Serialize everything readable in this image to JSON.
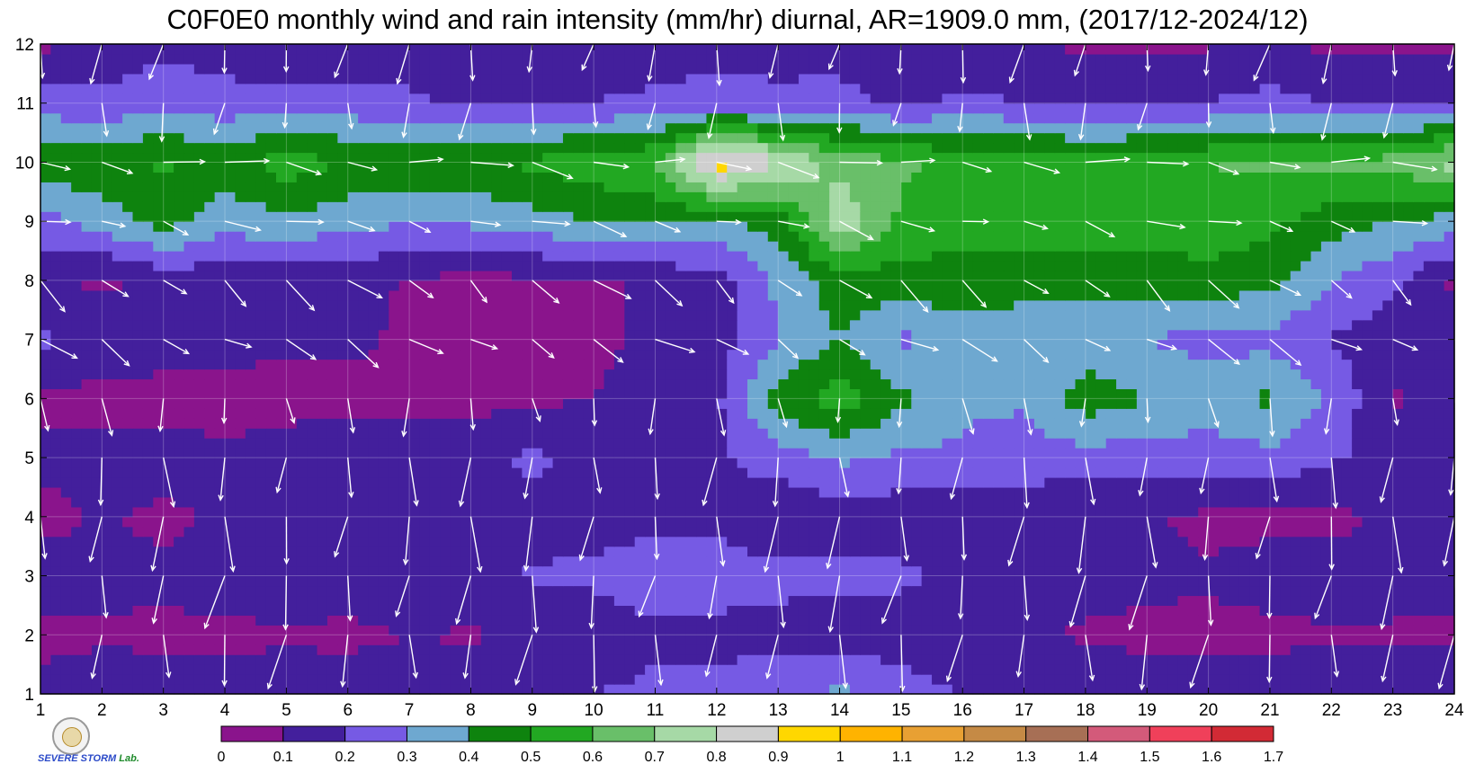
{
  "chart_data": {
    "type": "heatmap",
    "title": "C0F0E0 monthly wind and rain intensity (mm/hr) diurnal, AR=1909.0 mm, (2017/12-2024/12)",
    "xlabel": "",
    "ylabel": "",
    "x": [
      1,
      2,
      3,
      4,
      5,
      6,
      7,
      8,
      9,
      10,
      11,
      12,
      13,
      14,
      15,
      16,
      17,
      18,
      19,
      20,
      21,
      22,
      23,
      24
    ],
    "y": [
      1,
      2,
      3,
      4,
      5,
      6,
      7,
      8,
      9,
      10,
      11,
      12
    ],
    "xlim": [
      1,
      24
    ],
    "ylim": [
      1,
      12
    ],
    "x_tick_labels": [
      "1",
      "2",
      "3",
      "4",
      "5",
      "6",
      "7",
      "8",
      "9",
      "10",
      "11",
      "12",
      "13",
      "14",
      "15",
      "16",
      "17",
      "18",
      "19",
      "20",
      "21",
      "22",
      "23",
      "24"
    ],
    "y_tick_labels": [
      "1",
      "2",
      "3",
      "4",
      "5",
      "6",
      "7",
      "8",
      "9",
      "10",
      "11",
      "12"
    ],
    "z_rows_bottom_to_top": [
      [
        0.12,
        0.14,
        0.15,
        0.13,
        0.14,
        0.15,
        0.15,
        0.17,
        0.2,
        0.2,
        0.22,
        0.24,
        0.26,
        0.32,
        0.25,
        0.2,
        0.17,
        0.15,
        0.15,
        0.16,
        0.15,
        0.15,
        0.14,
        0.13
      ],
      [
        0.08,
        0.09,
        0.08,
        0.08,
        0.09,
        0.08,
        0.1,
        0.09,
        0.11,
        0.14,
        0.18,
        0.17,
        0.16,
        0.16,
        0.14,
        0.12,
        0.11,
        0.09,
        0.08,
        0.08,
        0.08,
        0.09,
        0.09,
        0.09
      ],
      [
        0.14,
        0.12,
        0.12,
        0.14,
        0.15,
        0.15,
        0.16,
        0.18,
        0.21,
        0.22,
        0.26,
        0.25,
        0.23,
        0.22,
        0.22,
        0.18,
        0.15,
        0.13,
        0.12,
        0.11,
        0.13,
        0.14,
        0.13,
        0.12
      ],
      [
        0.07,
        0.11,
        0.08,
        0.12,
        0.14,
        0.14,
        0.14,
        0.16,
        0.16,
        0.16,
        0.17,
        0.17,
        0.12,
        0.14,
        0.14,
        0.13,
        0.12,
        0.12,
        0.11,
        0.08,
        0.08,
        0.08,
        0.11,
        0.13
      ],
      [
        0.12,
        0.14,
        0.14,
        0.12,
        0.14,
        0.15,
        0.15,
        0.16,
        0.22,
        0.18,
        0.17,
        0.18,
        0.25,
        0.32,
        0.28,
        0.28,
        0.26,
        0.25,
        0.26,
        0.25,
        0.27,
        0.21,
        0.16,
        0.14
      ],
      [
        0.08,
        0.07,
        0.07,
        0.06,
        0.07,
        0.07,
        0.07,
        0.07,
        0.08,
        0.1,
        0.14,
        0.18,
        0.45,
        0.55,
        0.42,
        0.32,
        0.31,
        0.46,
        0.4,
        0.35,
        0.42,
        0.29,
        0.08,
        0.2
      ],
      [
        0.22,
        0.15,
        0.14,
        0.13,
        0.12,
        0.12,
        0.08,
        0.09,
        0.1,
        0.08,
        0.12,
        0.16,
        0.3,
        0.4,
        0.28,
        0.33,
        0.31,
        0.33,
        0.3,
        0.26,
        0.27,
        0.19,
        0.16,
        0.14
      ],
      [
        0.12,
        0.08,
        0.13,
        0.14,
        0.14,
        0.14,
        0.09,
        0.07,
        0.08,
        0.08,
        0.12,
        0.15,
        0.32,
        0.46,
        0.45,
        0.48,
        0.46,
        0.43,
        0.44,
        0.45,
        0.44,
        0.3,
        0.22,
        0.08
      ],
      [
        0.26,
        0.35,
        0.45,
        0.34,
        0.38,
        0.33,
        0.31,
        0.32,
        0.36,
        0.4,
        0.42,
        0.38,
        0.44,
        0.78,
        0.58,
        0.52,
        0.55,
        0.58,
        0.56,
        0.58,
        0.52,
        0.45,
        0.4,
        0.36
      ],
      [
        0.48,
        0.46,
        0.52,
        0.45,
        0.55,
        0.5,
        0.48,
        0.48,
        0.52,
        0.56,
        0.6,
        0.96,
        0.82,
        0.66,
        0.62,
        0.58,
        0.58,
        0.54,
        0.55,
        0.6,
        0.62,
        0.62,
        0.64,
        0.75
      ],
      [
        0.25,
        0.22,
        0.28,
        0.24,
        0.26,
        0.24,
        0.22,
        0.18,
        0.2,
        0.2,
        0.22,
        0.24,
        0.24,
        0.24,
        0.18,
        0.22,
        0.2,
        0.18,
        0.2,
        0.2,
        0.24,
        0.2,
        0.19,
        0.2
      ],
      [
        0.08,
        0.14,
        0.16,
        0.15,
        0.09,
        0.14,
        0.14,
        0.14,
        0.16,
        0.16,
        0.15,
        0.16,
        0.14,
        0.15,
        0.14,
        0.13,
        0.11,
        0.08,
        0.08,
        0.09,
        0.11,
        0.08,
        0.08,
        0.07
      ]
    ],
    "wind_vectors": {
      "x_step": 1,
      "y_values": [
        1,
        2,
        3,
        4,
        5,
        6,
        7,
        8,
        9,
        10,
        11,
        12
      ],
      "arrow_color": "#ffffff",
      "direction_by_row_deg": [
        262,
        265,
        262,
        266,
        268,
        275,
        330,
        320,
        345,
        352,
        265,
        260
      ],
      "magnitude_by_row": [
        0.75,
        0.8,
        0.8,
        0.8,
        0.7,
        0.5,
        0.55,
        0.55,
        0.5,
        0.6,
        0.5,
        0.55
      ]
    },
    "grid": true,
    "contour_line_color": "#f5a623",
    "colorbar": {
      "levels": [
        "0",
        "0.1",
        "0.2",
        "0.3",
        "0.4",
        "0.5",
        "0.6",
        "0.7",
        "0.8",
        "0.9",
        "1",
        "1.1",
        "1.2",
        "1.3",
        "1.4",
        "1.5",
        "1.6",
        "1.7"
      ],
      "colors": [
        "#8a148c",
        "#431f9c",
        "#765ae4",
        "#6ea8d0",
        "#0e830e",
        "#22a822",
        "#69bf69",
        "#a6d9a6",
        "#cfcfcf",
        "#ffd700",
        "#ffb300",
        "#e8a033",
        "#c58a45",
        "#a76f55",
        "#d35a7a",
        "#f0405a",
        "#d22a35"
      ]
    }
  },
  "logo": {
    "text_main": "SEVERE STORM",
    "text_lab": "Lab."
  }
}
